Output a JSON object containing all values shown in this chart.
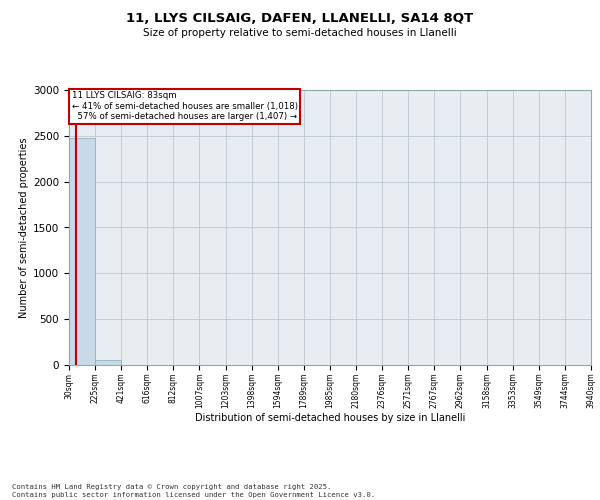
{
  "title1": "11, LLYS CILSAIG, DAFEN, LLANELLI, SA14 8QT",
  "title2": "Size of property relative to semi-detached houses in Llanelli",
  "xlabel": "Distribution of semi-detached houses by size in Llanelli",
  "ylabel": "Number of semi-detached properties",
  "property_size": 83,
  "property_label": "11 LLYS CILSAIG: 83sqm",
  "pct_smaller": 41,
  "n_smaller": 1018,
  "pct_larger": 57,
  "n_larger": 1407,
  "bar_color": "#c8d9e8",
  "highlight_color": "#c00000",
  "annotation_border_color": "#c00000",
  "grid_color": "#c0c8d0",
  "bg_color": "#e8edf2",
  "footer": "Contains HM Land Registry data © Crown copyright and database right 2025.\nContains public sector information licensed under the Open Government Licence v3.0.",
  "bin_edges": [
    30,
    225,
    421,
    616,
    812,
    1007,
    1203,
    1398,
    1594,
    1789,
    1985,
    2180,
    2376,
    2571,
    2767,
    2962,
    3158,
    3353,
    3549,
    3744,
    3940
  ],
  "bin_counts": [
    2480,
    50,
    5,
    2,
    1,
    0,
    1,
    0,
    0,
    0,
    1,
    0,
    0,
    0,
    0,
    0,
    0,
    0,
    0,
    0
  ],
  "ylim": [
    0,
    3000
  ],
  "yticks": [
    0,
    500,
    1000,
    1500,
    2000,
    2500,
    3000
  ]
}
